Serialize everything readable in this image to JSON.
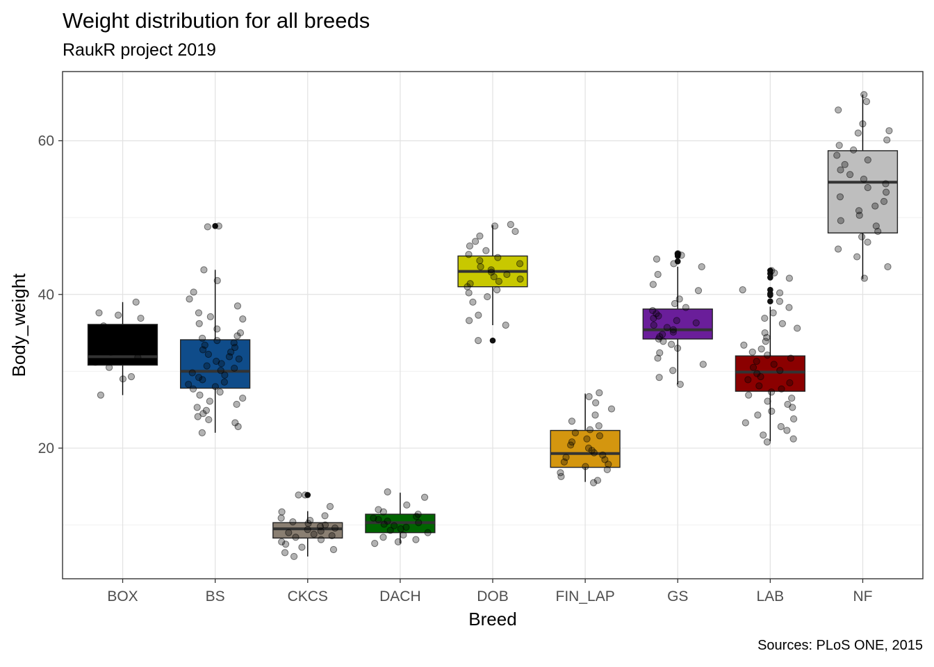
{
  "chart_data": {
    "type": "boxplot",
    "title": "Weight distribution for all breeds",
    "subtitle": "RaukR project 2019",
    "caption": "Sources: PLoS ONE, 2015",
    "xlabel": "Breed",
    "ylabel": "Body_weight",
    "ylim": [
      3,
      69
    ],
    "yticks": [
      20,
      40,
      60
    ],
    "grid": true,
    "categories": [
      "BOX",
      "BS",
      "CKCS",
      "DACH",
      "DOB",
      "FIN_LAP",
      "GS",
      "LAB",
      "NF"
    ],
    "boxes": [
      {
        "name": "BOX",
        "fill": "#000000",
        "q1": 30.8,
        "median": 31.9,
        "q3": 36.1,
        "whisker_low": 26.9,
        "whisker_high": 39.0,
        "outliers": [],
        "points": [
          39.0,
          37.6,
          37.3,
          36.9,
          35.9,
          35.2,
          34.0,
          33.1,
          32.5,
          31.8,
          31.2,
          30.5,
          29.3,
          29.0,
          26.9
        ]
      },
      {
        "name": "BS",
        "fill": "#0f4c8a",
        "q1": 27.8,
        "median": 30.0,
        "q3": 34.1,
        "whisker_low": 22.0,
        "whisker_high": 43.2,
        "outliers": [
          48.9
        ],
        "points": [
          48.9,
          48.8,
          43.2,
          41.8,
          40.3,
          39.4,
          38.5,
          37.6,
          37.1,
          36.8,
          36.2,
          35.5,
          35.0,
          34.6,
          34.3,
          34.0,
          33.7,
          33.4,
          33.1,
          32.8,
          32.5,
          32.2,
          31.9,
          31.6,
          31.3,
          31.0,
          30.7,
          30.4,
          30.1,
          29.8,
          29.5,
          29.2,
          28.9,
          28.6,
          28.3,
          28.0,
          27.7,
          27.3,
          26.9,
          26.5,
          26.1,
          25.7,
          25.3,
          24.9,
          24.5,
          24.1,
          23.7,
          23.3,
          22.8,
          22.0
        ]
      },
      {
        "name": "CKCS",
        "fill": "#8a7f72",
        "q1": 8.3,
        "median": 9.5,
        "q3": 10.3,
        "whisker_low": 5.9,
        "whisker_high": 11.8,
        "outliers": [
          13.9
        ],
        "points": [
          13.9,
          13.9,
          12.4,
          11.7,
          11.2,
          10.9,
          10.6,
          10.4,
          10.2,
          10.0,
          9.8,
          9.6,
          9.4,
          9.2,
          9.0,
          8.8,
          8.6,
          8.4,
          8.1,
          7.8,
          7.5,
          7.1,
          6.8,
          6.4,
          5.9
        ]
      },
      {
        "name": "DACH",
        "fill": "#006400",
        "q1": 9.0,
        "median": 10.3,
        "q3": 11.4,
        "whisker_low": 7.6,
        "whisker_high": 14.2,
        "outliers": [],
        "points": [
          14.3,
          13.6,
          12.6,
          12.0,
          11.7,
          11.4,
          11.1,
          10.9,
          10.7,
          10.5,
          10.3,
          10.1,
          9.9,
          9.7,
          9.5,
          9.3,
          9.0,
          8.7,
          8.4,
          8.1,
          7.8,
          7.6
        ]
      },
      {
        "name": "DOB",
        "fill": "#c8c800",
        "q1": 41.0,
        "median": 43.0,
        "q3": 45.0,
        "whisker_low": 36.0,
        "whisker_high": 49.0,
        "outliers": [
          34.0
        ],
        "points": [
          49.1,
          48.9,
          48.2,
          47.6,
          46.9,
          46.3,
          45.7,
          45.2,
          44.8,
          44.4,
          44.0,
          43.6,
          43.2,
          42.9,
          42.6,
          42.3,
          42.0,
          41.7,
          41.4,
          41.0,
          40.6,
          40.2,
          39.7,
          39.0,
          37.3,
          36.6,
          36.0,
          34.0
        ]
      },
      {
        "name": "FIN_LAP",
        "fill": "#d4960f",
        "q1": 17.5,
        "median": 19.3,
        "q3": 22.3,
        "whisker_low": 15.6,
        "whisker_high": 27.1,
        "outliers": [],
        "points": [
          27.2,
          26.7,
          25.9,
          25.1,
          24.3,
          23.5,
          22.9,
          22.4,
          22.0,
          21.6,
          21.2,
          20.8,
          20.4,
          20.0,
          19.7,
          19.4,
          19.1,
          18.8,
          18.5,
          18.2,
          17.9,
          17.6,
          17.2,
          16.8,
          16.3,
          15.8,
          15.5
        ]
      },
      {
        "name": "GS",
        "fill": "#6a1e9a",
        "q1": 34.2,
        "median": 35.4,
        "q3": 38.1,
        "whisker_low": 28.3,
        "whisker_high": 43.6,
        "outliers": [
          45.3,
          45.0,
          44.3
        ],
        "points": [
          45.3,
          45.1,
          44.6,
          44.0,
          43.6,
          42.6,
          41.3,
          40.5,
          39.4,
          38.8,
          38.3,
          37.9,
          37.5,
          37.2,
          36.9,
          36.6,
          36.3,
          36.0,
          35.7,
          35.4,
          35.1,
          34.8,
          34.5,
          34.2,
          33.9,
          33.5,
          33.0,
          32.4,
          31.7,
          30.9,
          30.1,
          29.2,
          28.3
        ]
      },
      {
        "name": "LAB",
        "fill": "#8b0000",
        "q1": 27.4,
        "median": 29.9,
        "q3": 32.0,
        "whisker_low": 20.9,
        "whisker_high": 38.4,
        "outliers": [
          43.1,
          42.7,
          42.2,
          40.6,
          40.1,
          39.9,
          39.1
        ],
        "points": [
          43.1,
          42.8,
          42.1,
          40.6,
          40.2,
          39.1,
          38.3,
          37.6,
          36.9,
          36.2,
          35.6,
          35.0,
          34.4,
          33.9,
          33.4,
          32.9,
          32.5,
          32.1,
          31.7,
          31.3,
          30.9,
          30.5,
          30.1,
          29.7,
          29.3,
          28.9,
          28.5,
          28.1,
          27.7,
          27.3,
          26.9,
          26.5,
          26.1,
          25.7,
          25.3,
          24.8,
          24.3,
          23.8,
          23.3,
          22.8,
          22.3,
          21.7,
          21.2,
          20.8
        ]
      },
      {
        "name": "NF",
        "fill": "#bebebe",
        "q1": 48.0,
        "median": 54.6,
        "q3": 58.7,
        "whisker_low": 42.0,
        "whisker_high": 66.0,
        "outliers": [],
        "points": [
          66.0,
          65.1,
          64.0,
          62.2,
          61.3,
          61.0,
          60.1,
          59.4,
          58.8,
          58.1,
          57.5,
          56.9,
          56.2,
          55.6,
          55.0,
          54.4,
          53.9,
          53.3,
          52.7,
          52.1,
          51.5,
          50.9,
          50.3,
          49.6,
          48.9,
          48.2,
          47.5,
          46.8,
          45.9,
          44.9,
          43.6,
          42.1
        ]
      }
    ]
  }
}
